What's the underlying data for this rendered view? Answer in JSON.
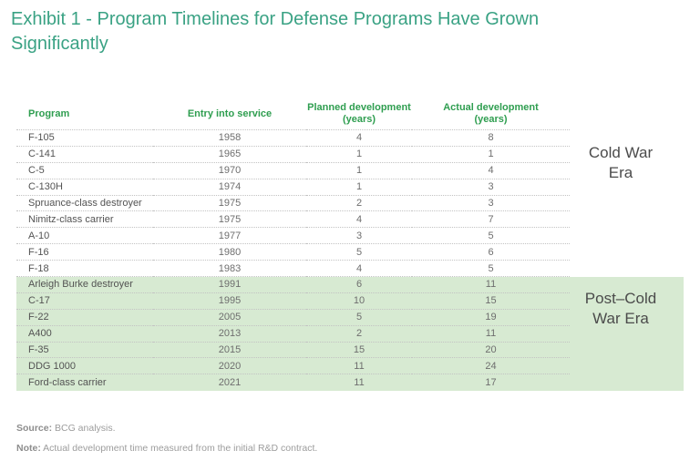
{
  "title": "Exhibit 1 - Program Timelines for Defense Programs Have Grown Significantly",
  "colors": {
    "title_green": "#3aa284",
    "header_green": "#2f9e50",
    "band_green": "#d7ead2",
    "body_text": "#535353",
    "number_text": "#6e6e6e",
    "era_text": "#4b4b4b",
    "dotted_line": "#c3c3c3",
    "footnote_gray": "#9c9c9c"
  },
  "chart_data": {
    "type": "table",
    "title": "Exhibit 1 - Program Timelines for Defense Programs Have Grown Significantly",
    "columns": [
      "Program",
      "Entry into service",
      "Planned development\n(years)",
      "Actual development\n(years)"
    ],
    "rows": [
      {
        "program": "F-105",
        "entry_into_service": "1958",
        "planned_years": "4",
        "actual_years": "8",
        "era": "cold_war"
      },
      {
        "program": "C-141",
        "entry_into_service": "1965",
        "planned_years": "1",
        "actual_years": "1",
        "era": "cold_war"
      },
      {
        "program": "C-5",
        "entry_into_service": "1970",
        "planned_years": "1",
        "actual_years": "4",
        "era": "cold_war"
      },
      {
        "program": "C-130H",
        "entry_into_service": "1974",
        "planned_years": "1",
        "actual_years": "3",
        "era": "cold_war"
      },
      {
        "program": "Spruance-class destroyer",
        "entry_into_service": "1975",
        "planned_years": "2",
        "actual_years": "3",
        "era": "cold_war"
      },
      {
        "program": "Nimitz-class carrier",
        "entry_into_service": "1975",
        "planned_years": "4",
        "actual_years": "7",
        "era": "cold_war"
      },
      {
        "program": "A-10",
        "entry_into_service": "1977",
        "planned_years": "3",
        "actual_years": "5",
        "era": "cold_war"
      },
      {
        "program": "F-16",
        "entry_into_service": "1980",
        "planned_years": "5",
        "actual_years": "6",
        "era": "cold_war"
      },
      {
        "program": "F-18",
        "entry_into_service": "1983",
        "planned_years": "4",
        "actual_years": "5",
        "era": "cold_war"
      },
      {
        "program": "Arleigh Burke destroyer",
        "entry_into_service": "1991",
        "planned_years": "6",
        "actual_years": "11",
        "era": "post_cold_war"
      },
      {
        "program": "C-17",
        "entry_into_service": "1995",
        "planned_years": "10",
        "actual_years": "15",
        "era": "post_cold_war"
      },
      {
        "program": "F-22",
        "entry_into_service": "2005",
        "planned_years": "5",
        "actual_years": "19",
        "era": "post_cold_war"
      },
      {
        "program": "A400",
        "entry_into_service": "2013",
        "planned_years": "2",
        "actual_years": "11",
        "era": "post_cold_war"
      },
      {
        "program": "F-35",
        "entry_into_service": "2015",
        "planned_years": "15",
        "actual_years": "20",
        "era": "post_cold_war"
      },
      {
        "program": "DDG 1000",
        "entry_into_service": "2020",
        "planned_years": "11",
        "actual_years": "24",
        "era": "post_cold_war"
      },
      {
        "program": "Ford-class carrier",
        "entry_into_service": "2021",
        "planned_years": "11",
        "actual_years": "17",
        "era": "post_cold_war"
      }
    ]
  },
  "era_labels": {
    "cold_war": "Cold War\nEra",
    "post_cold_war": "Post–Cold\nWar Era"
  },
  "footer": {
    "source_label": "Source:",
    "source_text": " BCG analysis.",
    "note_label": "Note:",
    "note_text": " Actual development time measured from the initial R&D contract."
  }
}
